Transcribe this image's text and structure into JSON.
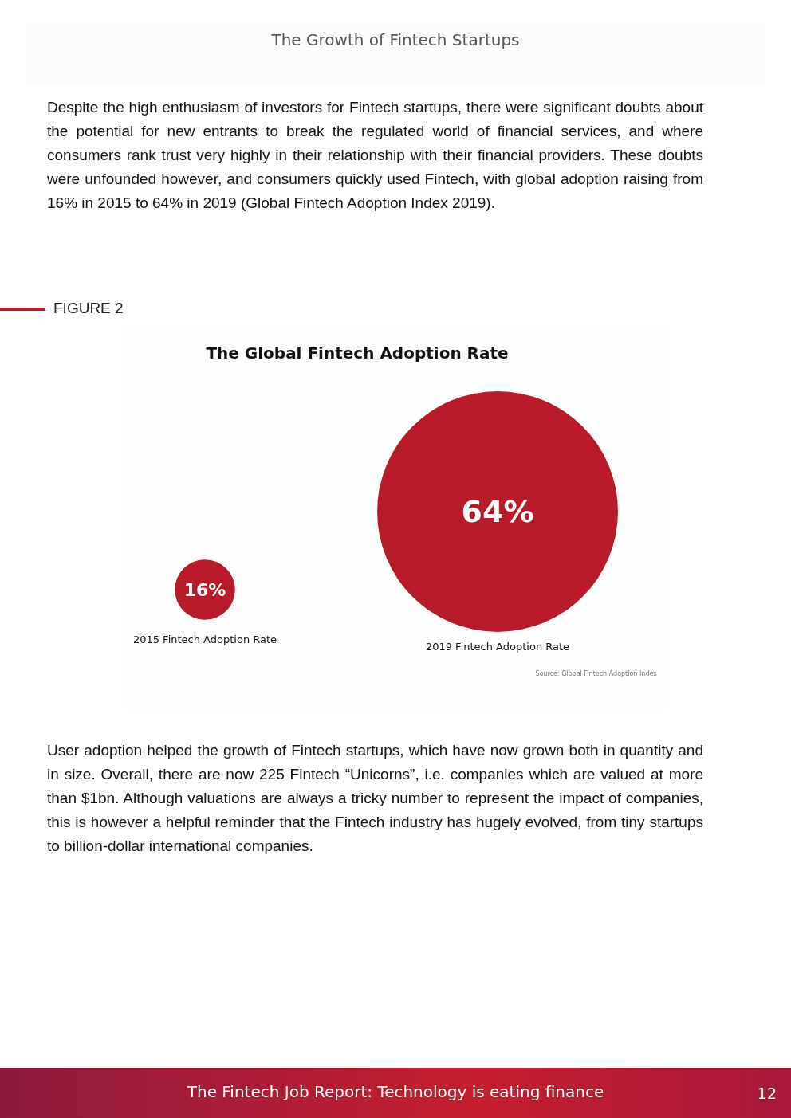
{
  "chart_data": {
    "type": "other",
    "title": "The Global Fintech Adoption Rate",
    "categories": [
      "2015 Fintech Adoption Rate",
      "2019 Fintech Adoption Rate"
    ],
    "values": [
      16,
      64
    ],
    "color": "#b71a28",
    "value_labels": [
      "16%",
      "64%"
    ],
    "annotations": [
      "The Growth of Fintech Startups",
      "Despite the high enthusiasm of investors for Fintech startups, there were significant doubts about the potential for new entrants to break the regulated world of financial services, and where consumers rank trust very highly in their relationship with their financial providers. These doubts were unfounded however, and consumers quickly used Fintech, with global adoption raising from 16% in 2015 to 64% in 2019 (Global Fintech Adoption Index 2019).",
      "FIGURE 2",
      "Source: Global Fintech Adoption Index",
      "User adoption helped the growth of Fintech startups, which have now grown both in quantity and in size. Overall, there are now 225 Fintech “Unicorns”, i.e. companies which are valued at more than $1bn. Although valuations are always a tricky number to represent the impact of companies, this is however a helpful reminder that the Fintech industry has hugely evolved, from tiny startups to billion-dollar international companies.",
      "The Fintech Job Report: Technology is eating finance",
      "12"
    ]
  }
}
